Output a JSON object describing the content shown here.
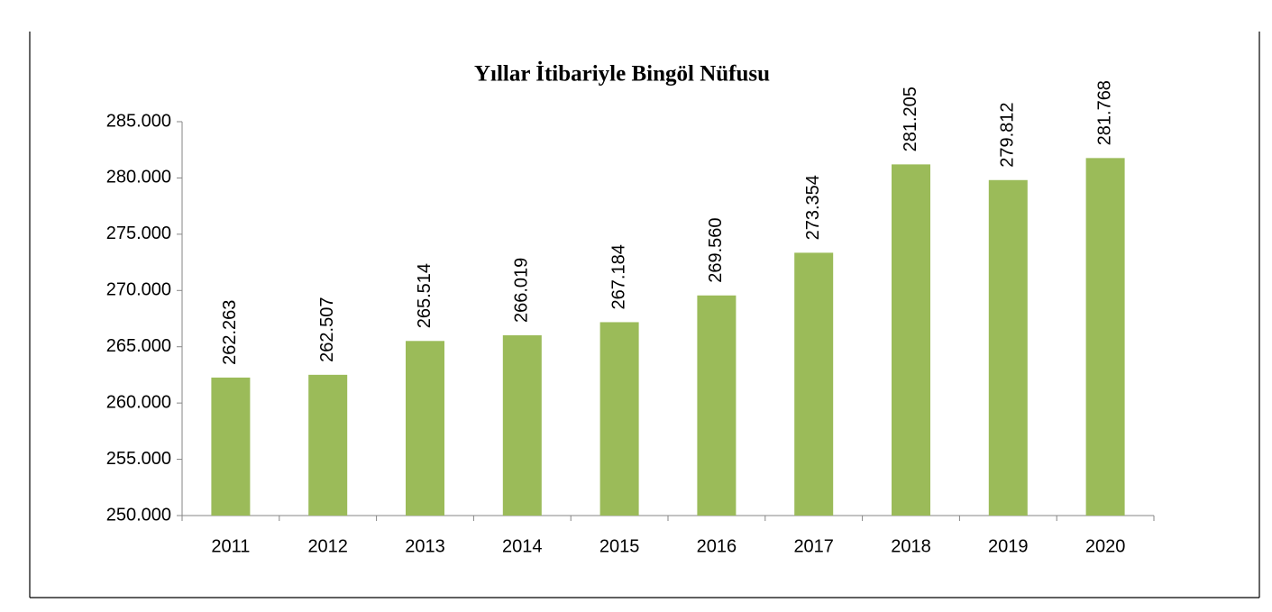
{
  "chart_data": {
    "type": "bar",
    "title": "Yıllar İtibariyle Bingöl Nüfusu",
    "categories": [
      "2011",
      "2012",
      "2013",
      "2014",
      "2015",
      "2016",
      "2017",
      "2018",
      "2019",
      "2020"
    ],
    "values": [
      262263,
      262507,
      265514,
      266019,
      267184,
      269560,
      273354,
      281205,
      279812,
      281768
    ],
    "value_labels": [
      "262.263",
      "262.507",
      "265.514",
      "266.019",
      "267.184",
      "269.560",
      "273.354",
      "281.205",
      "279.812",
      "281.768"
    ],
    "color": "#9bbb59",
    "ylim": [
      250000,
      285000
    ],
    "yticks": [
      {
        "value": 250000,
        "label": "250.000"
      },
      {
        "value": 255000,
        "label": "255.000"
      },
      {
        "value": 260000,
        "label": "260.000"
      },
      {
        "value": 265000,
        "label": "265.000"
      },
      {
        "value": 270000,
        "label": "270.000"
      },
      {
        "value": 275000,
        "label": "275.000"
      },
      {
        "value": 280000,
        "label": "280.000"
      },
      {
        "value": 285000,
        "label": "285.000"
      }
    ],
    "grid": false
  }
}
